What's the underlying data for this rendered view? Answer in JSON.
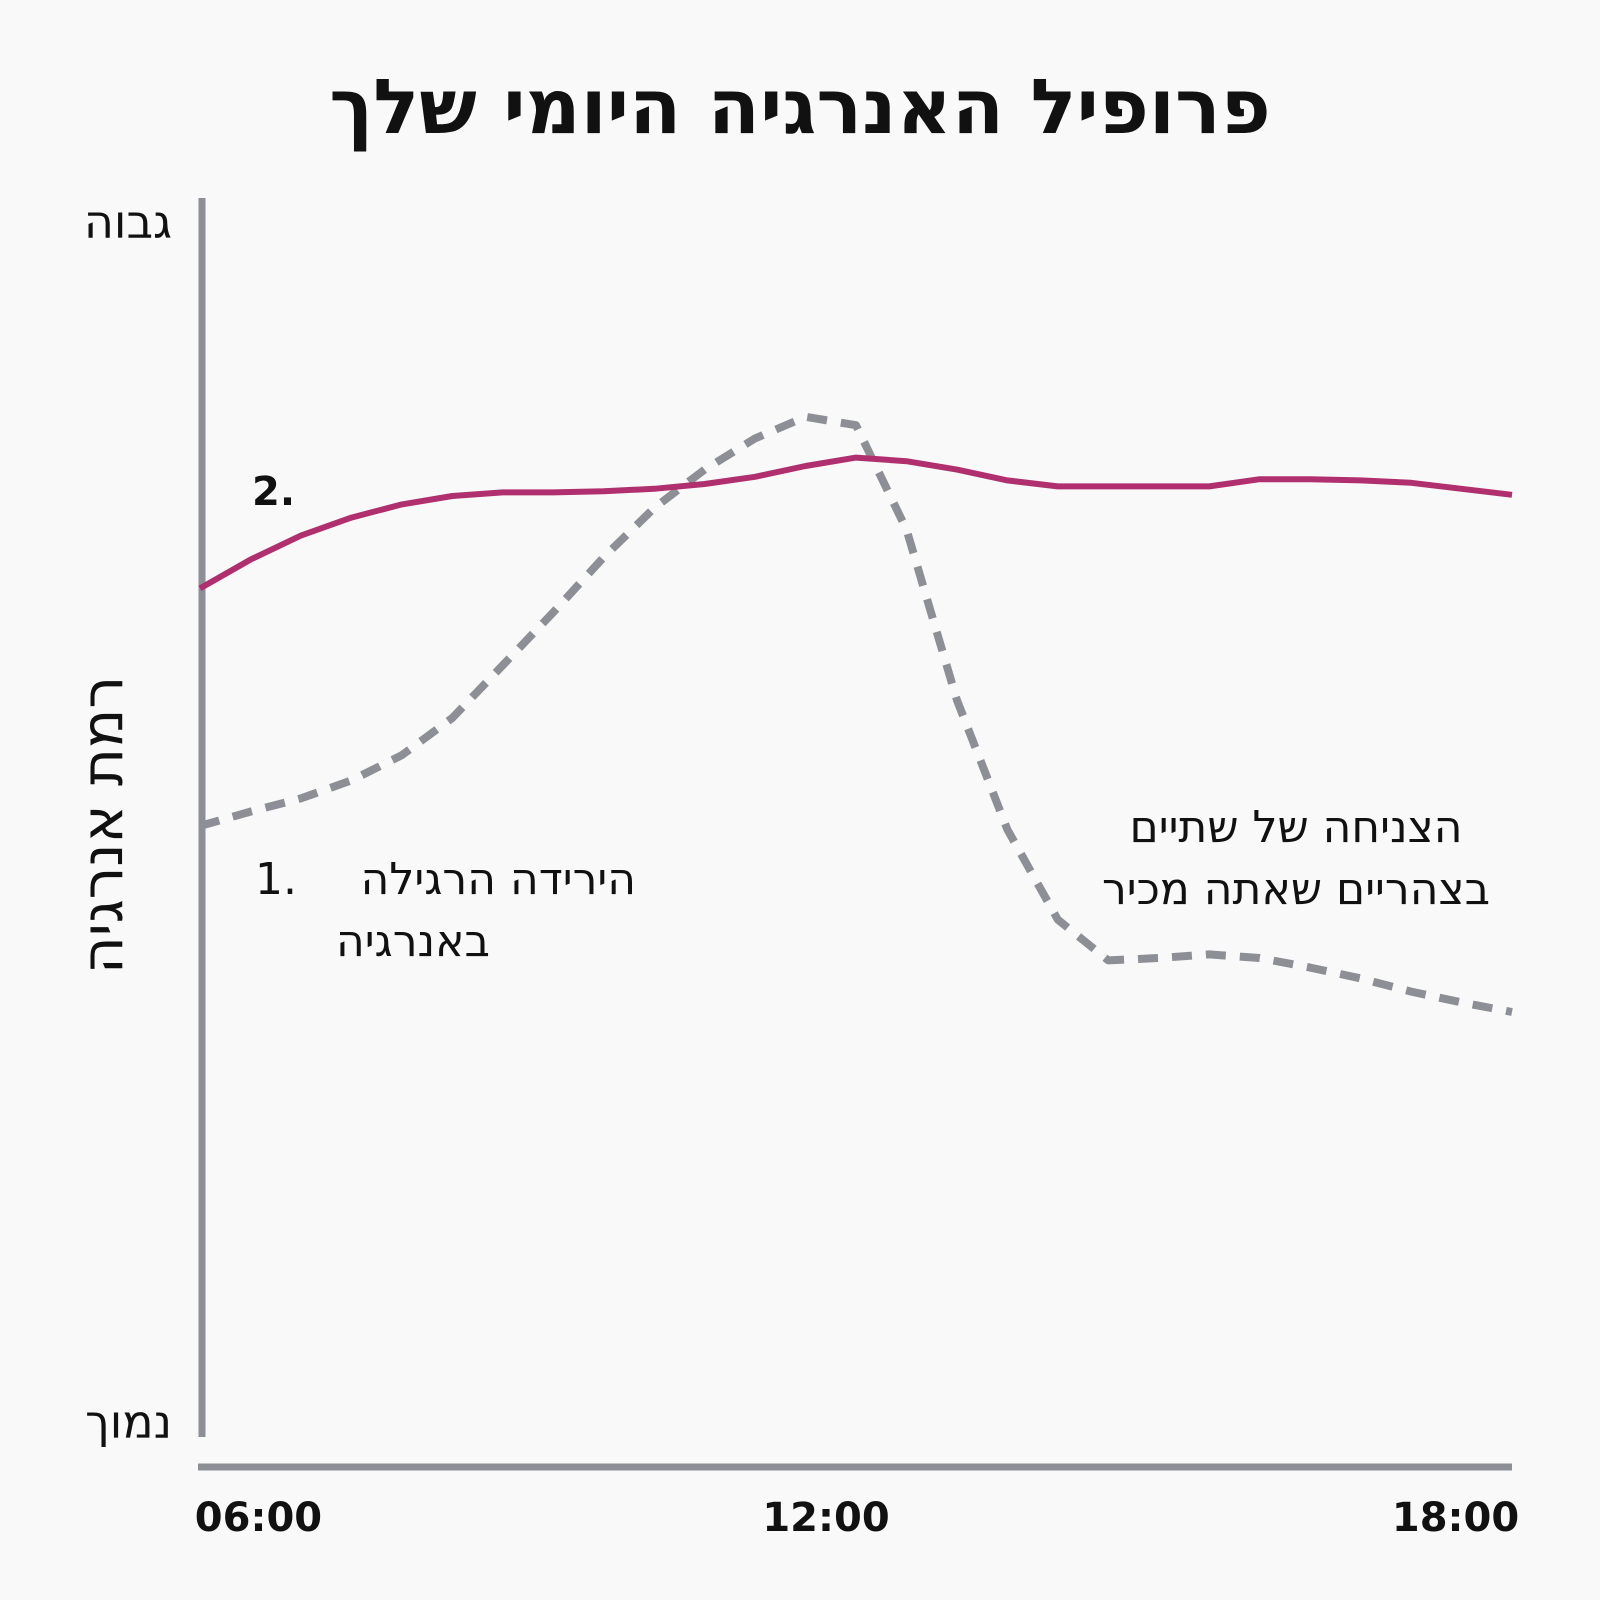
{
  "chart_data": {
    "type": "line",
    "title": "פרופיל האנרגיה היומי שלך",
    "y_label": "רמת אנרגיה",
    "xlim": [
      5.5,
      18.5
    ],
    "xticks": [
      {
        "value": 6,
        "label": "06:00"
      },
      {
        "value": 12,
        "label": "12:00"
      },
      {
        "value": 18,
        "label": "18:00"
      }
    ],
    "ylim": [
      0,
      100
    ],
    "yticks": [
      {
        "value": 0,
        "label": "נמוך"
      },
      {
        "value": 100,
        "label": "גבוה"
      }
    ],
    "grid": false,
    "x": [
      5.5,
      6,
      6.5,
      7,
      7.5,
      8,
      8.5,
      9,
      9.5,
      10,
      10.5,
      11,
      11.5,
      12,
      12.5,
      13,
      13.5,
      14,
      14.5,
      15,
      15.5,
      16,
      16.5,
      17,
      17.5,
      18,
      18.5
    ],
    "series": [
      {
        "color": "#8e8e96",
        "dashed": true,
        "values": [
          49.5,
          50.7,
          51.8,
          53.3,
          55.4,
          58.5,
          62.9,
          67.3,
          71.9,
          76.0,
          79.2,
          81.8,
          83.6,
          82.9,
          74.2,
          60.0,
          49.2,
          41.7,
          38.3,
          38.5,
          38.8,
          38.5,
          37.7,
          36.8,
          35.7,
          34.8,
          34.0
        ]
      },
      {
        "color": "#b0306f",
        "dashed": false,
        "values": [
          69.3,
          71.7,
          73.7,
          75.2,
          76.3,
          77.0,
          77.3,
          77.3,
          77.4,
          77.6,
          78.0,
          78.6,
          79.5,
          80.2,
          79.9,
          79.2,
          78.3,
          77.8,
          77.8,
          77.8,
          77.8,
          78.4,
          78.4,
          78.3,
          78.1,
          77.6,
          77.1
        ]
      }
    ],
    "annotations": [
      {
        "marker": "1.",
        "lines": [
          "הירידה הרגילה",
          "באנרגיה"
        ]
      },
      {
        "marker": "2."
      },
      {
        "lines": [
          "הצניחה של שתיים",
          "בצהריים שאתה מכיר"
        ]
      }
    ]
  }
}
